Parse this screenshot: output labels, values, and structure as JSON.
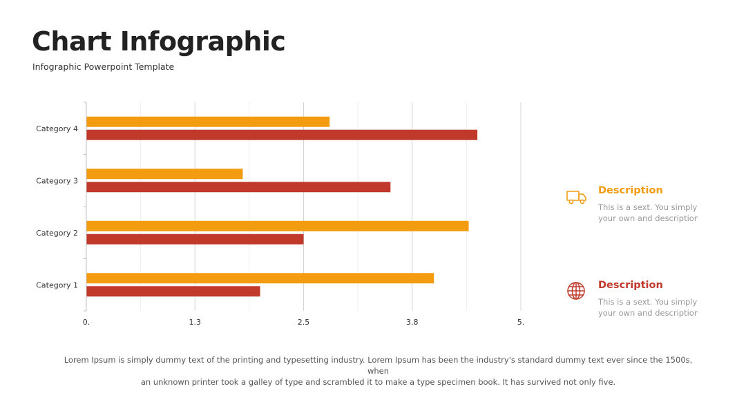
{
  "header": {
    "title": "Chart Infographic",
    "subtitle": "Infographic Powerpoint Template"
  },
  "colors": {
    "series1": "#F39C12",
    "series2": "#C0392B",
    "gridline": "#d9d9d9"
  },
  "chart_data": {
    "type": "bar",
    "orientation": "horizontal",
    "categories": [
      "Category 1",
      "Category 2",
      "Category 3",
      "Category 4"
    ],
    "series": [
      {
        "values": [
          4.0,
          4.4,
          1.8,
          2.8
        ]
      },
      {
        "values": [
          2.0,
          2.5,
          3.5,
          4.5
        ]
      }
    ],
    "ticks": [
      "0.",
      "1.3",
      "2.5",
      "3.8",
      "5."
    ],
    "xlim": [
      0,
      5
    ],
    "grid": true,
    "title": "",
    "xlabel": "",
    "ylabel": ""
  },
  "descriptions": [
    {
      "icon": "delivery-truck-icon",
      "title": "Description",
      "lines": [
        "This is a sext. You simply d",
        "your own  and description"
      ],
      "color": "#F39C12"
    },
    {
      "icon": "globe-icon",
      "title": "Description",
      "lines": [
        "This is a sext. You simply d",
        "your own  and description"
      ],
      "color": "#C0392B"
    }
  ],
  "footer": {
    "line1": "Lorem Ipsum is simply dummy text of the printing and typesetting industry. Lorem Ipsum has been the industry's standard dummy text ever since the 1500s, when",
    "line2": "an unknown printer took a galley of type and scrambled it to make a type specimen book. It has survived not only five."
  }
}
